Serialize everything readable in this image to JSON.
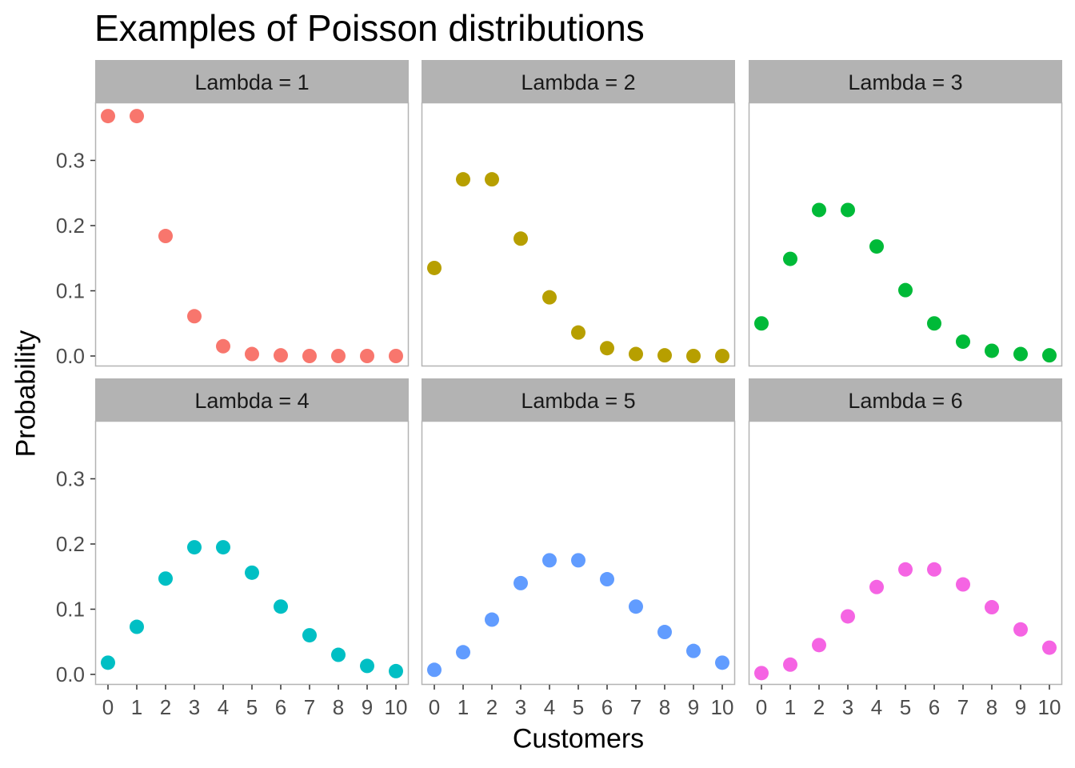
{
  "chart_data": {
    "type": "scatter",
    "title": "Examples of Poisson distributions",
    "xlabel": "Customers",
    "ylabel": "Probability",
    "x": [
      0,
      1,
      2,
      3,
      4,
      5,
      6,
      7,
      8,
      9,
      10
    ],
    "xlim": [
      0,
      10
    ],
    "ylim": [
      0,
      0.368
    ],
    "yticks": [
      "0.0",
      "0.1",
      "0.2",
      "0.3"
    ],
    "grid": false,
    "legend": "none",
    "panels": [
      {
        "name": "Lambda = 1",
        "color": "#F8766D",
        "values": [
          0.368,
          0.368,
          0.184,
          0.061,
          0.015,
          0.003,
          0.001,
          0.0,
          0.0,
          0.0,
          0.0
        ]
      },
      {
        "name": "Lambda = 2",
        "color": "#B79F00",
        "values": [
          0.135,
          0.271,
          0.271,
          0.18,
          0.09,
          0.036,
          0.012,
          0.003,
          0.001,
          0.0,
          0.0
        ]
      },
      {
        "name": "Lambda = 3",
        "color": "#00BA38",
        "values": [
          0.05,
          0.149,
          0.224,
          0.224,
          0.168,
          0.101,
          0.05,
          0.022,
          0.008,
          0.003,
          0.001
        ]
      },
      {
        "name": "Lambda = 4",
        "color": "#00BFC4",
        "values": [
          0.018,
          0.073,
          0.147,
          0.195,
          0.195,
          0.156,
          0.104,
          0.06,
          0.03,
          0.013,
          0.005
        ]
      },
      {
        "name": "Lambda = 5",
        "color": "#619CFF",
        "values": [
          0.007,
          0.034,
          0.084,
          0.14,
          0.175,
          0.175,
          0.146,
          0.104,
          0.065,
          0.036,
          0.018
        ]
      },
      {
        "name": "Lambda = 6",
        "color": "#F564E3",
        "values": [
          0.002,
          0.015,
          0.045,
          0.089,
          0.134,
          0.161,
          0.161,
          0.138,
          0.103,
          0.069,
          0.041
        ]
      }
    ]
  }
}
